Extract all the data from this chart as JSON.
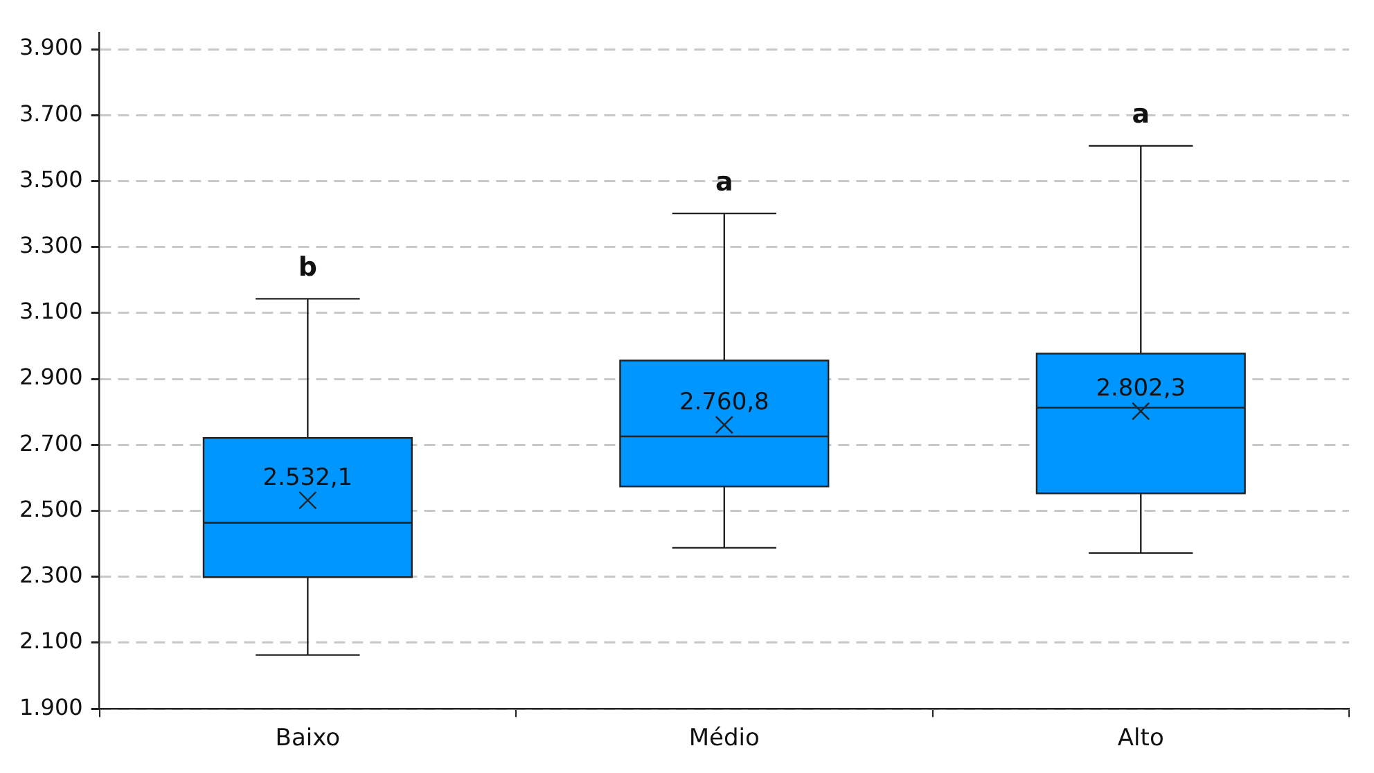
{
  "chart_data": {
    "type": "box",
    "categories": [
      "Baixo",
      "Médio",
      "Alto"
    ],
    "color": "#0096ff",
    "boxes": [
      {
        "low": 2063,
        "q1": 2299,
        "median": 2464,
        "q3": 2721,
        "high": 3143,
        "mean": 2532.1
      },
      {
        "low": 2388,
        "q1": 2574,
        "median": 2726,
        "q3": 2956,
        "high": 3402,
        "mean": 2760.8
      },
      {
        "low": 2372,
        "q1": 2553,
        "median": 2813,
        "q3": 2977,
        "high": 3607,
        "mean": 2802.3
      }
    ],
    "value_labels": [
      "2.532,1",
      "2.760,8",
      "2.802,3"
    ],
    "marker": "cross",
    "grid": "y",
    "legend": false,
    "ylim": [
      1900,
      3950
    ],
    "yticks": [
      {
        "value": 1900,
        "label": "1.900"
      },
      {
        "value": 2100,
        "label": "2.100"
      },
      {
        "value": 2300,
        "label": "2.300"
      },
      {
        "value": 2500,
        "label": "2.500"
      },
      {
        "value": 2700,
        "label": "2.700"
      },
      {
        "value": 2900,
        "label": "2.900"
      },
      {
        "value": 3100,
        "label": "3.100"
      },
      {
        "value": 3300,
        "label": "3.300"
      },
      {
        "value": 3500,
        "label": "3.500"
      },
      {
        "value": 3700,
        "label": "3.700"
      },
      {
        "value": 3900,
        "label": "3.900"
      }
    ],
    "annotations": [
      "b",
      "a",
      "a"
    ]
  }
}
